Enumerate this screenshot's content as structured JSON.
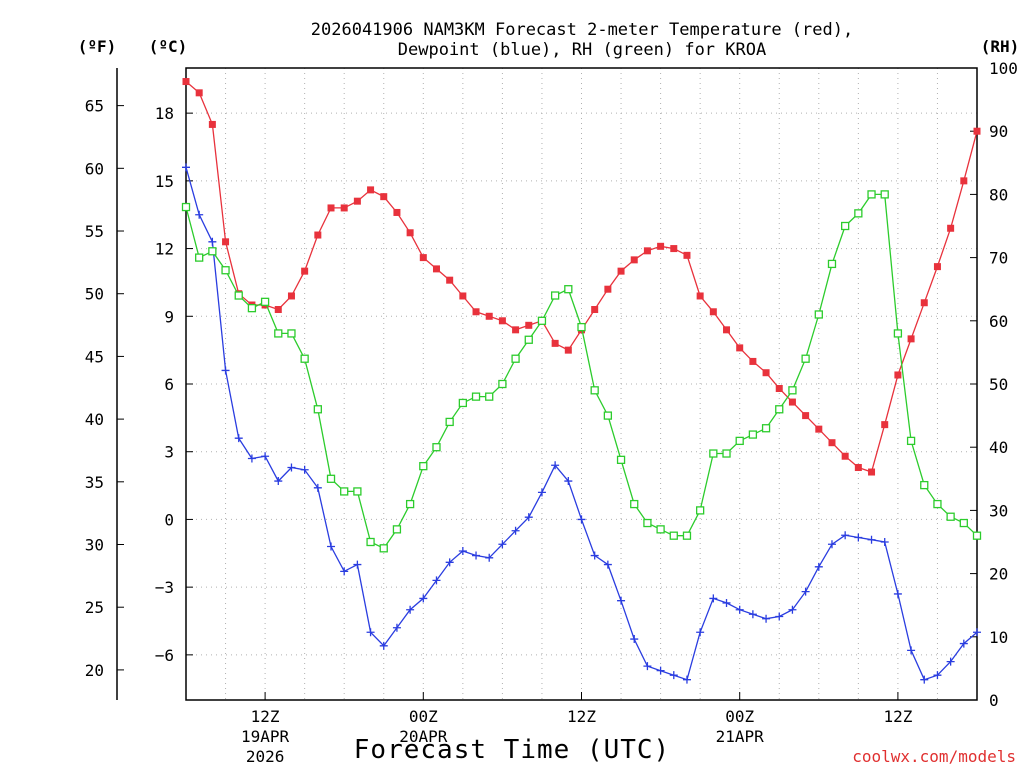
{
  "chart_data": {
    "type": "line",
    "title_line1": "2026041906 NAM3KM Forecast 2-meter Temperature (red),",
    "title_line2": "Dewpoint (blue), RH (green) for KROA",
    "xlabel": "Forecast Time (UTC)",
    "credit": "coolwx.com/models",
    "left_f_unit": "(ºF)",
    "left_c_unit": "(ºC)",
    "right_unit": "(RH)",
    "x_range_hours": [
      0,
      60
    ],
    "x_ticks": [
      {
        "hour": 6,
        "label": "12Z",
        "date": "19APR",
        "year": "2026"
      },
      {
        "hour": 18,
        "label": "00Z",
        "date": "20APR",
        "year": ""
      },
      {
        "hour": 30,
        "label": "12Z",
        "date": "",
        "year": ""
      },
      {
        "hour": 42,
        "label": "00Z",
        "date": "21APR",
        "year": ""
      },
      {
        "hour": 54,
        "label": "12Z",
        "date": "",
        "year": ""
      }
    ],
    "y_celsius": {
      "range": [
        -8,
        20
      ],
      "ticks": [
        -6,
        -3,
        0,
        3,
        6,
        9,
        12,
        15,
        18
      ],
      "tick_labels": [
        "−6",
        "−3",
        "0",
        "3",
        "6",
        "9",
        "12",
        "15",
        "18"
      ]
    },
    "y_fahrenheit": {
      "ticks": [
        20,
        25,
        30,
        35,
        40,
        45,
        50,
        55,
        60,
        65
      ],
      "tick_labels": [
        "20",
        "25",
        "30",
        "35",
        "40",
        "45",
        "50",
        "55",
        "60",
        "65"
      ]
    },
    "y_rh": {
      "range": [
        0,
        100
      ],
      "ticks": [
        0,
        10,
        20,
        30,
        40,
        50,
        60,
        70,
        80,
        90,
        100
      ],
      "tick_labels": [
        "0",
        "10",
        "20",
        "30",
        "40",
        "50",
        "60",
        "70",
        "80",
        "90",
        "100"
      ]
    },
    "series": [
      {
        "name": "2-meter Temperature",
        "axis": "celsius",
        "color": "#e8323c",
        "marker": "filled-square",
        "hours": [
          0,
          1,
          2,
          3,
          4,
          5,
          6,
          7,
          8,
          9,
          10,
          11,
          12,
          13,
          14,
          15,
          16,
          17,
          18,
          19,
          20,
          21,
          22,
          23,
          24,
          25,
          26,
          27,
          28,
          29,
          30,
          31,
          32,
          33,
          34,
          35,
          36,
          37,
          38,
          39,
          40,
          41,
          42,
          43,
          44,
          45,
          46,
          47,
          48,
          49,
          50,
          51,
          52,
          53,
          54,
          55,
          56,
          57,
          58,
          59,
          60
        ],
        "values": [
          19.4,
          18.9,
          17.5,
          12.3,
          10.0,
          9.5,
          9.5,
          9.3,
          9.9,
          11.0,
          12.6,
          13.8,
          13.8,
          14.1,
          14.6,
          14.3,
          13.6,
          12.7,
          11.6,
          11.1,
          10.6,
          9.9,
          9.2,
          9.0,
          8.8,
          8.4,
          8.6,
          8.8,
          7.8,
          7.5,
          8.4,
          9.3,
          10.2,
          11.0,
          11.5,
          11.9,
          12.1,
          12.0,
          11.7,
          9.9,
          9.2,
          8.4,
          7.6,
          7.0,
          6.5,
          5.8,
          5.2,
          4.6,
          4.0,
          3.4,
          2.8,
          2.3,
          2.1,
          4.2,
          6.4,
          8.0,
          9.6,
          11.2,
          12.9,
          15.0,
          17.2
        ]
      },
      {
        "name": "Dewpoint",
        "axis": "celsius",
        "color": "#2a3de0",
        "marker": "plus",
        "hours": [
          0,
          1,
          2,
          3,
          4,
          5,
          6,
          7,
          8,
          9,
          10,
          11,
          12,
          13,
          14,
          15,
          16,
          17,
          18,
          19,
          20,
          21,
          22,
          23,
          24,
          25,
          26,
          27,
          28,
          29,
          30,
          31,
          32,
          33,
          34,
          35,
          36,
          37,
          38,
          39,
          40,
          41,
          42,
          43,
          44,
          45,
          46,
          47,
          48,
          49,
          50,
          51,
          52,
          53,
          54,
          55,
          56,
          57,
          58,
          59,
          60
        ],
        "values": [
          15.6,
          13.5,
          12.3,
          6.6,
          3.6,
          2.7,
          2.8,
          1.7,
          2.3,
          2.2,
          1.4,
          -1.2,
          -2.3,
          -2.0,
          -5.0,
          -5.6,
          -4.8,
          -4.0,
          -3.5,
          -2.7,
          -1.9,
          -1.4,
          -1.6,
          -1.7,
          -1.1,
          -0.5,
          0.1,
          1.2,
          2.4,
          1.7,
          0.0,
          -1.6,
          -2.0,
          -3.6,
          -5.3,
          -6.5,
          -6.7,
          -6.9,
          -7.1,
          -5.0,
          -3.5,
          -3.7,
          -4.0,
          -4.2,
          -4.4,
          -4.3,
          -4.0,
          -3.2,
          -2.1,
          -1.1,
          -0.7,
          -0.8,
          -0.9,
          -1.0,
          -3.3,
          -5.8,
          -7.1,
          -6.9,
          -6.3,
          -5.5,
          -5.0
        ]
      },
      {
        "name": "RH",
        "axis": "rh",
        "color": "#2ccc2c",
        "marker": "open-square",
        "hours": [
          0,
          1,
          2,
          3,
          4,
          5,
          6,
          7,
          8,
          9,
          10,
          11,
          12,
          13,
          14,
          15,
          16,
          17,
          18,
          19,
          20,
          21,
          22,
          23,
          24,
          25,
          26,
          27,
          28,
          29,
          30,
          31,
          32,
          33,
          34,
          35,
          36,
          37,
          38,
          39,
          40,
          41,
          42,
          43,
          44,
          45,
          46,
          47,
          48,
          49,
          50,
          51,
          52,
          53,
          54,
          55,
          56,
          57,
          58,
          59,
          60
        ],
        "values": [
          78,
          70,
          71,
          68,
          64,
          62,
          63,
          58,
          58,
          54,
          46,
          35,
          33,
          33,
          25,
          24,
          27,
          31,
          37,
          40,
          44,
          47,
          48,
          48,
          50,
          54,
          57,
          60,
          64,
          65,
          59,
          49,
          45,
          38,
          31,
          28,
          27,
          26,
          26,
          30,
          39,
          39,
          41,
          42,
          43,
          46,
          49,
          54,
          61,
          69,
          75,
          77,
          80,
          80,
          58,
          41,
          34,
          31,
          29,
          28,
          26
        ]
      }
    ]
  }
}
